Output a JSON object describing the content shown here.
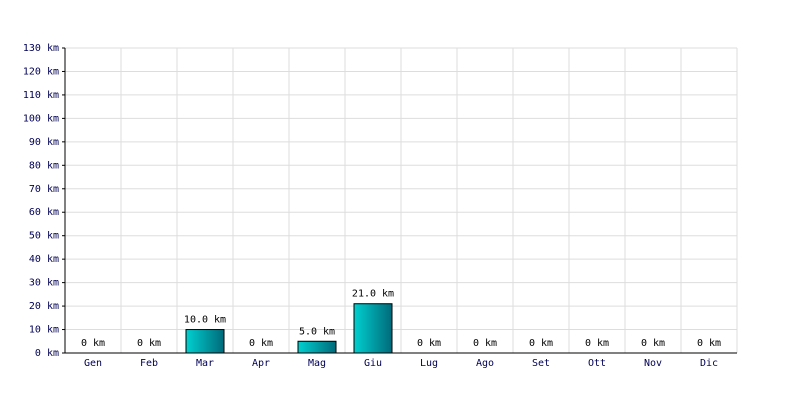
{
  "chart_data": {
    "type": "bar",
    "categories": [
      "Gen",
      "Feb",
      "Mar",
      "Apr",
      "Mag",
      "Giu",
      "Lug",
      "Ago",
      "Set",
      "Ott",
      "Nov",
      "Dic"
    ],
    "values": [
      0,
      0,
      10,
      0,
      5,
      21,
      0,
      0,
      0,
      0,
      0,
      0
    ],
    "value_labels": [
      "0 km",
      "0 km",
      "10.0 km",
      "0 km",
      "5.0 km",
      "21.0 km",
      "0 km",
      "0 km",
      "0 km",
      "0 km",
      "0 km",
      "0 km"
    ],
    "color": "#00d0d0",
    "ylim": [
      0,
      130
    ],
    "yticks": [
      {
        "value": 0,
        "label": "0 km"
      },
      {
        "value": 10,
        "label": "10 km"
      },
      {
        "value": 20,
        "label": "20 km"
      },
      {
        "value": 30,
        "label": "30 km"
      },
      {
        "value": 40,
        "label": "40 km"
      },
      {
        "value": 50,
        "label": "50 km"
      },
      {
        "value": 60,
        "label": "60 km"
      },
      {
        "value": 70,
        "label": "70 km"
      },
      {
        "value": 80,
        "label": "80 km"
      },
      {
        "value": 90,
        "label": "90 km"
      },
      {
        "value": 100,
        "label": "100 km"
      },
      {
        "value": 110,
        "label": "110 km"
      },
      {
        "value": 120,
        "label": "120 km"
      },
      {
        "value": 130,
        "label": "130 km"
      }
    ],
    "grid": true
  }
}
